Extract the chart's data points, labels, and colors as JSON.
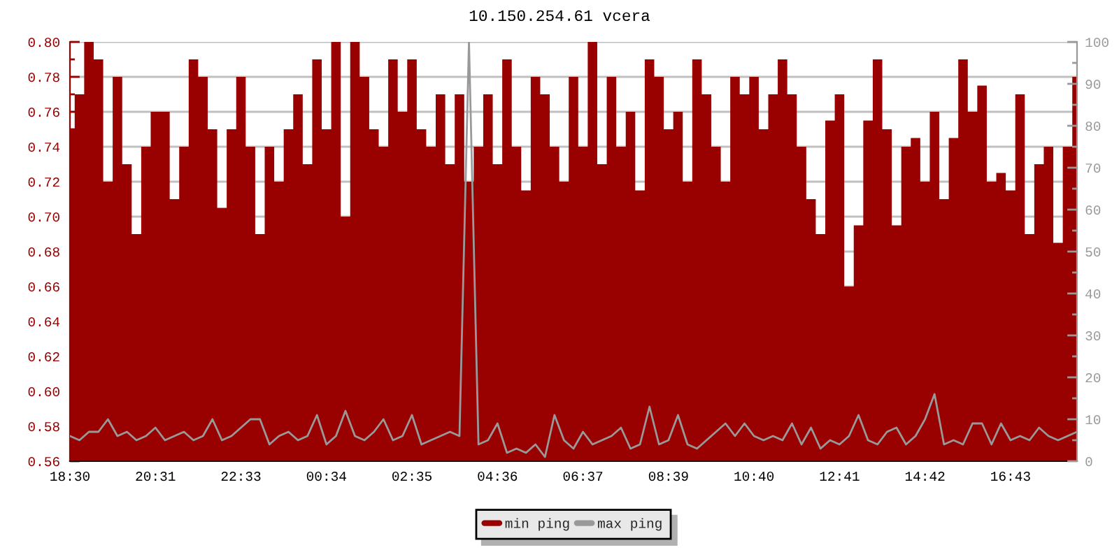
{
  "chart_data": {
    "type": "area",
    "title": "10.150.254.61 vcera",
    "categories": [
      "18:30",
      null,
      null,
      null,
      null,
      null,
      null,
      null,
      null,
      "20:31",
      null,
      null,
      null,
      null,
      null,
      null,
      null,
      null,
      "22:33",
      null,
      null,
      null,
      null,
      null,
      null,
      null,
      null,
      "00:34",
      null,
      null,
      null,
      null,
      null,
      null,
      null,
      null,
      "02:35",
      null,
      null,
      null,
      null,
      null,
      null,
      null,
      null,
      "04:36",
      null,
      null,
      null,
      null,
      null,
      null,
      null,
      null,
      "06:37",
      null,
      null,
      null,
      null,
      null,
      null,
      null,
      null,
      "08:39",
      null,
      null,
      null,
      null,
      null,
      null,
      null,
      null,
      "10:40",
      null,
      null,
      null,
      null,
      null,
      null,
      null,
      null,
      "12:41",
      null,
      null,
      null,
      null,
      null,
      null,
      null,
      null,
      "14:42",
      null,
      null,
      null,
      null,
      null,
      null,
      null,
      null,
      "16:43",
      null,
      null,
      null,
      null,
      null,
      null,
      null
    ],
    "ylim": [
      0.56,
      0.8
    ],
    "yticks": [
      0.56,
      0.58,
      {
        "value": 0.6,
        "label": "0.60"
      },
      0.62,
      0.64,
      0.66,
      0.68,
      {
        "value": 0.7,
        "label": "0.70"
      },
      0.72,
      0.74,
      0.76,
      0.78,
      {
        "value": 0.8,
        "label": "0.80"
      }
    ],
    "y2lim": [
      0,
      100
    ],
    "y2ticks": [
      0,
      10,
      20,
      30,
      40,
      50,
      60,
      70,
      80,
      90,
      100
    ],
    "grid": "y",
    "legend": "bottom",
    "line_style": "solid",
    "series": [
      {
        "name": "min ping",
        "color": "#990000",
        "values": [
          0.75,
          0.77,
          0.8,
          0.79,
          0.72,
          0.78,
          0.73,
          0.69,
          0.74,
          0.76,
          0.76,
          0.71,
          0.74,
          0.79,
          0.78,
          0.75,
          0.705,
          0.75,
          0.78,
          0.74,
          0.69,
          0.74,
          0.72,
          0.75,
          0.77,
          0.73,
          0.79,
          0.75,
          0.8,
          0.7,
          0.8,
          0.78,
          0.75,
          0.74,
          0.79,
          0.76,
          0.79,
          0.75,
          0.74,
          0.77,
          0.73,
          0.77,
          0.72,
          0.74,
          0.77,
          0.73,
          0.79,
          0.74,
          0.715,
          0.78,
          0.77,
          0.74,
          0.72,
          0.78,
          0.74,
          0.8,
          0.73,
          0.78,
          0.74,
          0.76,
          0.715,
          0.79,
          0.78,
          0.75,
          0.76,
          0.72,
          0.79,
          0.77,
          0.74,
          0.72,
          0.78,
          0.77,
          0.78,
          0.75,
          0.77,
          0.79,
          0.77,
          0.74,
          0.71,
          0.69,
          0.755,
          0.77,
          0.66,
          0.695,
          0.755,
          0.79,
          0.75,
          0.695,
          0.74,
          0.745,
          0.72,
          0.76,
          0.71,
          0.745,
          0.79,
          0.76,
          0.775,
          0.72,
          0.725,
          0.715,
          0.77,
          0.69,
          0.73,
          0.74,
          0.685,
          0.74,
          0.78
        ]
      },
      {
        "name": "max ping",
        "type": "line",
        "axis": "y2",
        "color": "#999999",
        "values": [
          6,
          5,
          7,
          7,
          10,
          6,
          7,
          5,
          6,
          8,
          5,
          6,
          7,
          5,
          6,
          10,
          5,
          6,
          8,
          10,
          10,
          4,
          6,
          7,
          5,
          6,
          11,
          4,
          6,
          12,
          6,
          5,
          7,
          10,
          5,
          6,
          11,
          4,
          5,
          6,
          7,
          6,
          100,
          4,
          5,
          9,
          2,
          3,
          2,
          4,
          1,
          11,
          5,
          3,
          7,
          4,
          5,
          6,
          8,
          3,
          4,
          13,
          4,
          5,
          11,
          4,
          3,
          5,
          7,
          9,
          6,
          9,
          6,
          5,
          6,
          5,
          9,
          4,
          8,
          3,
          5,
          4,
          6,
          11,
          5,
          4,
          7,
          8,
          4,
          6,
          10,
          16,
          4,
          5,
          4,
          9,
          9,
          4,
          9,
          5,
          6,
          5,
          8,
          6,
          5,
          6,
          7
        ]
      }
    ]
  }
}
